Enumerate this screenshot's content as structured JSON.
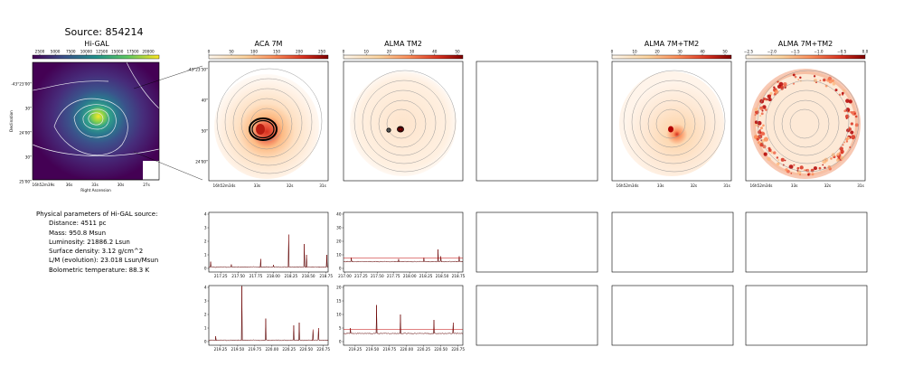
{
  "figure": {
    "title": "Source: 854214",
    "panels": {
      "higal": {
        "title": "Hi-GAL",
        "colorbar_ticks": [
          "2500",
          "5000",
          "7500",
          "10000",
          "12500",
          "15000",
          "17500",
          "20000"
        ],
        "dec_ticks": [
          "-43°23'00\"",
          "30\"",
          "24'00\"",
          "30\"",
          "25'00\""
        ],
        "ra_ticks": [
          "16h52m39s",
          "36s",
          "33s",
          "30s",
          "27s"
        ],
        "xlabel": "Right Ascension",
        "ylabel": "Declination"
      },
      "aca7m": {
        "title": "ACA 7M",
        "colorbar_ticks": [
          "0",
          "50",
          "100",
          "150",
          "200",
          "250"
        ],
        "dec_ticks": [
          "-43°23'30\"",
          "40\"",
          "50\"",
          "24'00\""
        ],
        "ra_ticks": [
          "16h52m34s",
          "33s",
          "32s",
          "31s"
        ]
      },
      "tm2": {
        "title": "ALMA TM2",
        "colorbar_ticks": [
          "0",
          "10",
          "20",
          "30",
          "40",
          "50"
        ]
      },
      "tm2_7m": {
        "title": "ALMA 7M+TM2",
        "colorbar_ticks": [
          "0",
          "10",
          "20",
          "30",
          "40",
          "50"
        ],
        "ra_ticks": [
          "16h52m34s",
          "33s",
          "32s",
          "31s"
        ]
      },
      "tm2_7m_log": {
        "title": "ALMA 7M+TM2",
        "colorbar_ticks": [
          "−2.5",
          "−2.0",
          "−1.5",
          "−1.0",
          "−0.5",
          "0.0"
        ],
        "ra_ticks": [
          "16h52m34s",
          "33s",
          "32s",
          "31s"
        ]
      }
    },
    "physical": {
      "title": "Physical parameters of Hi-GAL source:",
      "rows": [
        "Distance: 4511 pc",
        "Mass: 950.8 Msun",
        "Luminosity: 21886.2 Lsun",
        "Surface density: 3.12 g/cm^2",
        "L/M (evolution): 23.018 Lsun/Msun",
        "Bolometric temperature: 88.3 K"
      ]
    }
  },
  "chart_data": [
    {
      "type": "line",
      "panel": "aca7m_spw1",
      "x": [
        217.25,
        217.5,
        217.75,
        218.0,
        218.25,
        218.5,
        218.75
      ],
      "ylim": [
        0,
        4
      ],
      "yticks": [
        "0",
        "1",
        "2",
        "3",
        "4"
      ],
      "xticks": [
        "217.25",
        "217.50",
        "217.75",
        "218.00",
        "218.25",
        "218.50",
        "218.75"
      ],
      "lines": [
        {
          "x": 217.104,
          "y": 0.5
        },
        {
          "x": 217.82,
          "y": 0.7
        },
        {
          "x": 218.22,
          "y": 2.5
        },
        {
          "x": 218.44,
          "y": 1.8
        },
        {
          "x": 218.47,
          "y": 1.0
        },
        {
          "x": 218.76,
          "y": 1.0
        },
        {
          "x": 217.4,
          "y": 0.3
        },
        {
          "x": 218.0,
          "y": 0.25
        }
      ],
      "baseline": 0.1
    },
    {
      "type": "line",
      "panel": "tm2_spw1",
      "ylim": [
        0,
        40
      ],
      "yticks": [
        "0",
        "10",
        "20",
        "30",
        "40"
      ],
      "xticks": [
        "217.00",
        "217.25",
        "217.50",
        "217.75",
        "218.00",
        "218.25",
        "218.50",
        "218.75"
      ],
      "lines": [
        {
          "x": 217.1,
          "y": 8
        },
        {
          "x": 217.83,
          "y": 7
        },
        {
          "x": 218.22,
          "y": 8
        },
        {
          "x": 218.44,
          "y": 14
        },
        {
          "x": 218.48,
          "y": 9
        },
        {
          "x": 218.76,
          "y": 9
        }
      ],
      "baseline": 5
    },
    {
      "type": "line",
      "panel": "aca7m_spw2",
      "ylim": [
        0,
        4
      ],
      "yticks": [
        "0",
        "1",
        "2",
        "3",
        "4"
      ],
      "xticks": [
        "219.25",
        "219.50",
        "219.75",
        "220.00",
        "220.25",
        "220.50",
        "220.75"
      ],
      "lines": [
        {
          "x": 219.56,
          "y": 4.1
        },
        {
          "x": 219.91,
          "y": 1.7
        },
        {
          "x": 220.32,
          "y": 1.2
        },
        {
          "x": 220.4,
          "y": 1.4
        },
        {
          "x": 220.6,
          "y": 0.9
        },
        {
          "x": 220.68,
          "y": 1.0
        },
        {
          "x": 219.18,
          "y": 0.4
        }
      ],
      "baseline": 0.1
    },
    {
      "type": "line",
      "panel": "tm2_spw2",
      "ylim": [
        0,
        20
      ],
      "yticks": [
        "0",
        "5",
        "10",
        "15",
        "20"
      ],
      "xticks": [
        "219.25",
        "219.50",
        "219.75",
        "220.00",
        "220.25",
        "220.50",
        "220.75"
      ],
      "lines": [
        {
          "x": 219.56,
          "y": 13.5
        },
        {
          "x": 219.91,
          "y": 10
        },
        {
          "x": 220.4,
          "y": 8
        },
        {
          "x": 220.68,
          "y": 7
        },
        {
          "x": 219.18,
          "y": 5
        }
      ],
      "baseline": 3
    }
  ]
}
